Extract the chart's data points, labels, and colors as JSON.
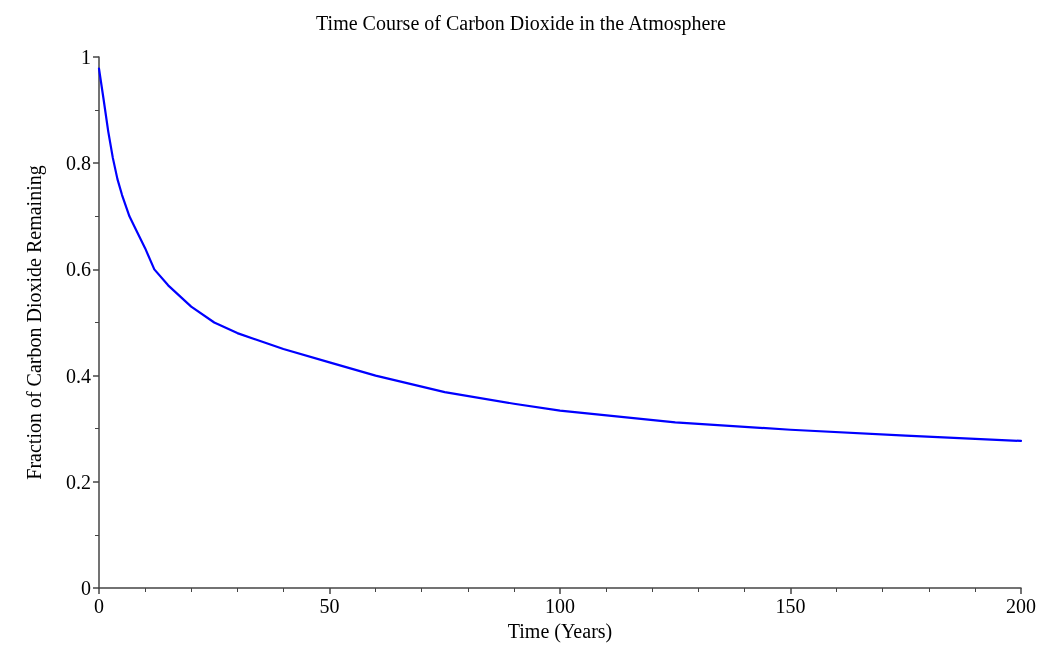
{
  "chart_data": {
    "type": "line",
    "title": "Time Course of Carbon Dioxide in the Atmosphere",
    "xlabel": "Time (Years)",
    "ylabel": "Fraction of Carbon Dioxide Remaining",
    "x": [
      0,
      1,
      2,
      3,
      4,
      5,
      6.6,
      8,
      10,
      12,
      15,
      20,
      25,
      30,
      40,
      50,
      60,
      75,
      90,
      100,
      125,
      150,
      175,
      200
    ],
    "series": [
      {
        "color": "#0000ff",
        "values": [
          0.978,
          0.92,
          0.86,
          0.81,
          0.77,
          0.74,
          0.7,
          0.675,
          0.64,
          0.6,
          0.57,
          0.53,
          0.5,
          0.48,
          0.45,
          0.425,
          0.4,
          0.369,
          0.347,
          0.334,
          0.312,
          0.298,
          0.287,
          0.277
        ]
      }
    ],
    "xlim": [
      0,
      200
    ],
    "xticks": [
      0,
      50,
      100,
      150,
      200
    ],
    "ylim": [
      0,
      1
    ],
    "yticks": [
      0,
      0.2,
      0.4,
      0.6,
      0.8,
      1
    ],
    "grid": false,
    "marker": "none",
    "line_style": "solid"
  }
}
